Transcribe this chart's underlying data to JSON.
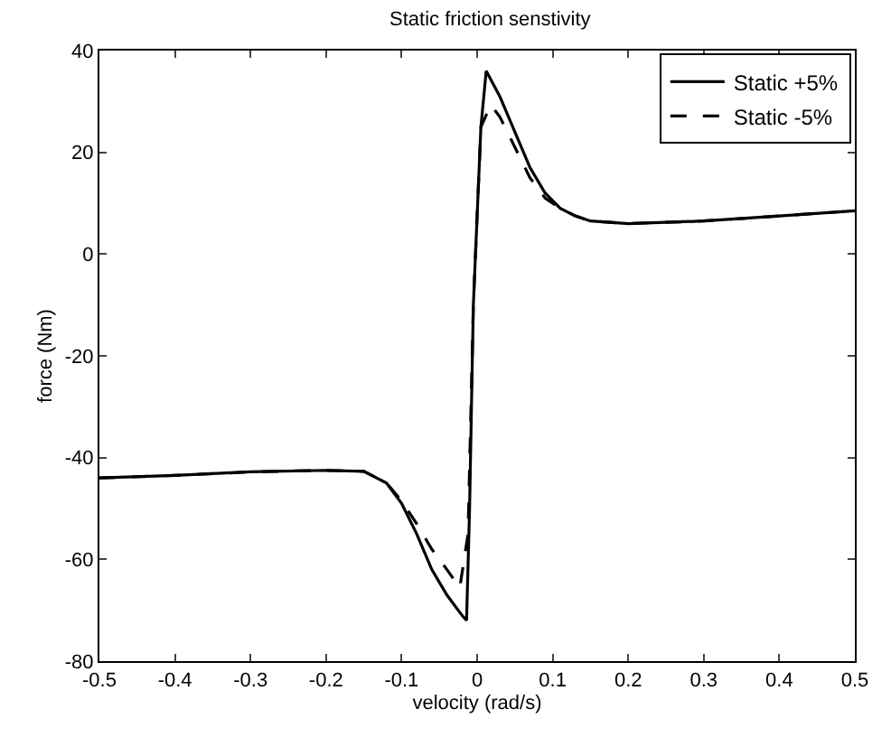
{
  "chart_data": {
    "type": "line",
    "title": "Static friction senstivity",
    "xlabel": "velocity (rad/s)",
    "ylabel": "force (Nm)",
    "xlim": [
      -0.5,
      0.5
    ],
    "xticks": [
      -0.5,
      -0.4,
      -0.3,
      -0.2,
      -0.1,
      0,
      0.1,
      0.2,
      0.3,
      0.4,
      0.5
    ],
    "ylim": [
      -80,
      40
    ],
    "yticks": [
      -80,
      -60,
      -40,
      -20,
      0,
      20,
      40
    ],
    "legend": "top right",
    "series": [
      {
        "name": "Static +5%",
        "color": "#000000",
        "line_style": "solid",
        "x": [
          -0.5,
          -0.4,
          -0.3,
          -0.2,
          -0.15,
          -0.12,
          -0.1,
          -0.08,
          -0.06,
          -0.04,
          -0.02,
          -0.014,
          -0.01,
          -0.005,
          0.005,
          0.012,
          0.03,
          0.05,
          0.07,
          0.09,
          0.11,
          0.13,
          0.15,
          0.2,
          0.3,
          0.4,
          0.5
        ],
        "values": [
          -44,
          -43.5,
          -42.8,
          -42.5,
          -42.7,
          -45,
          -49,
          -55,
          -62,
          -67,
          -71,
          -72,
          -50,
          -10,
          25,
          36,
          31,
          24,
          17,
          12,
          9,
          7.5,
          6.5,
          6,
          6.5,
          7.5,
          8.5
        ]
      },
      {
        "name": "Static -5%",
        "color": "#000000",
        "line_style": "dashed",
        "x": [
          -0.5,
          -0.4,
          -0.3,
          -0.2,
          -0.15,
          -0.12,
          -0.1,
          -0.08,
          -0.06,
          -0.04,
          -0.023,
          -0.012,
          -0.005,
          0.005,
          0.018,
          0.03,
          0.05,
          0.07,
          0.09,
          0.11,
          0.13,
          0.15,
          0.2,
          0.3,
          0.4,
          0.5
        ],
        "values": [
          -44,
          -43.5,
          -42.8,
          -42.5,
          -42.7,
          -45,
          -48.5,
          -53,
          -58,
          -62,
          -65.6,
          -55,
          -10,
          25,
          29.3,
          27,
          21,
          15,
          11,
          9,
          7.5,
          6.5,
          6,
          6.5,
          7.5,
          8.5
        ]
      }
    ]
  }
}
